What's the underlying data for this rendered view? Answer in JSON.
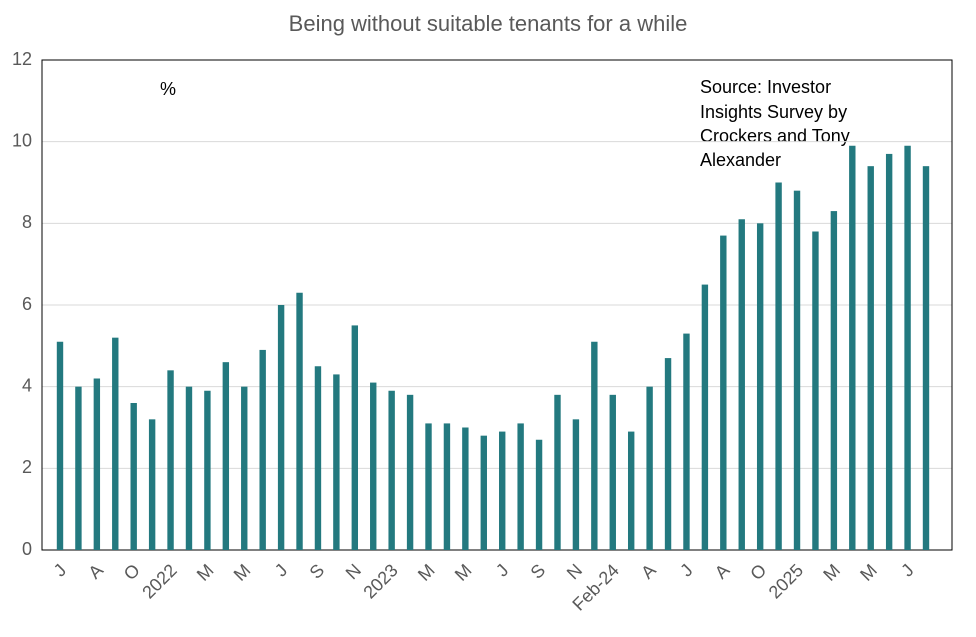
{
  "chart_data": {
    "type": "bar",
    "title": "Being without suitable tenants for a while",
    "annotations": [
      "%"
    ],
    "source": [
      "Source: Investor",
      "Insights Survey by",
      "Crockers and Tony",
      "Alexander"
    ],
    "categories": [
      "J",
      null,
      "A",
      null,
      "O",
      null,
      "2022",
      null,
      "M",
      null,
      "M",
      null,
      "J",
      null,
      "S",
      null,
      "N",
      null,
      "2023",
      null,
      "M",
      null,
      "M",
      null,
      "J",
      null,
      "S",
      null,
      "N",
      null,
      "Feb-24",
      null,
      "A",
      null,
      "J",
      null,
      "A",
      null,
      "O",
      null,
      "2025",
      null,
      "M",
      null,
      "M",
      null,
      "J",
      null
    ],
    "values": [
      5.1,
      4.0,
      4.2,
      5.2,
      3.6,
      3.2,
      4.4,
      4.0,
      3.9,
      4.6,
      4.0,
      4.9,
      6.0,
      6.3,
      4.5,
      4.3,
      5.5,
      4.1,
      3.9,
      3.8,
      3.1,
      3.1,
      3.0,
      2.8,
      2.9,
      3.1,
      2.7,
      3.8,
      3.2,
      5.1,
      3.8,
      2.9,
      4.0,
      4.7,
      5.3,
      6.5,
      7.7,
      8.1,
      8.0,
      9.0,
      8.8,
      7.8,
      8.3,
      9.9,
      9.4,
      9.7,
      9.9,
      9.4
    ],
    "color": "#23797f",
    "ylim": [
      0,
      12
    ],
    "yticks": [
      0,
      2,
      4,
      6,
      8,
      10,
      12
    ],
    "grid": true
  }
}
